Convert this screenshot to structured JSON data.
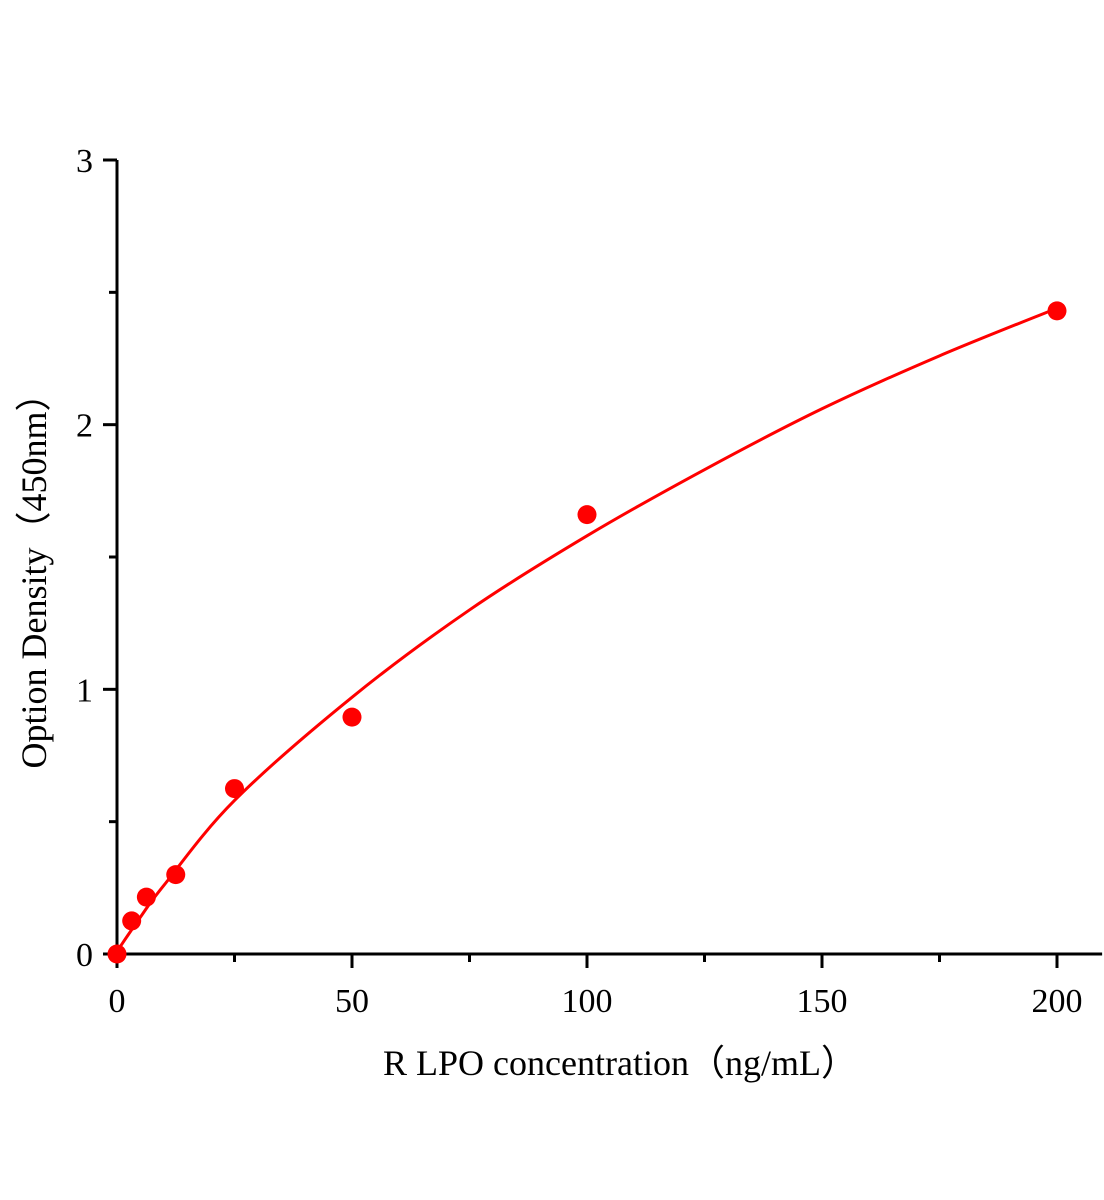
{
  "chart_data": {
    "type": "scatter",
    "title": "",
    "xlabel": "R LPO  concentration（ng/mL）",
    "ylabel": "Option Density（450nm）",
    "xlim": [
      0,
      209.6
    ],
    "ylim": [
      0,
      3
    ],
    "x_ticks": [
      "0",
      "50",
      "100",
      "150",
      "200"
    ],
    "y_ticks": [
      "0",
      "1",
      "2",
      "3"
    ],
    "grid": false,
    "color": "#ff0000",
    "series": [
      {
        "type": "scatter",
        "x": [
          0,
          3.125,
          6.25,
          12.5,
          25,
          50,
          100,
          200
        ],
        "y": [
          0.0,
          0.125,
          0.215,
          0.3,
          0.625,
          0.895,
          1.66,
          2.43
        ]
      },
      {
        "type": "line",
        "x": [
          0,
          5,
          10,
          25,
          50,
          75,
          100,
          125,
          150,
          175,
          200
        ],
        "y": [
          0.01,
          0.14,
          0.26,
          0.58,
          0.97,
          1.3,
          1.58,
          1.83,
          2.06,
          2.26,
          2.44
        ]
      }
    ]
  }
}
